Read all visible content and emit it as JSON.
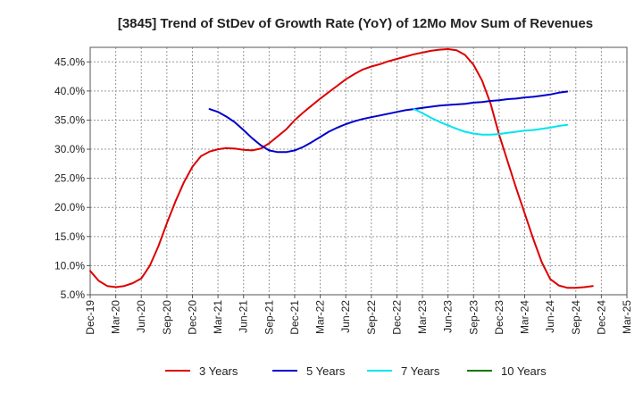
{
  "chart_data": {
    "type": "line",
    "title": "[3845]  Trend of StDev of Growth Rate (YoY) of 12Mo Mov Sum of Revenues",
    "xlabel": "",
    "ylabel": "",
    "ylim": [
      5.0,
      47.5
    ],
    "y_ticks": [
      5.0,
      10.0,
      15.0,
      20.0,
      25.0,
      30.0,
      35.0,
      40.0,
      45.0
    ],
    "y_tick_labels": [
      "5.0%",
      "10.0%",
      "15.0%",
      "20.0%",
      "25.0%",
      "30.0%",
      "35.0%",
      "40.0%",
      "45.0%"
    ],
    "x_ticks": [
      "Dec-19",
      "Mar-20",
      "Jun-20",
      "Sep-20",
      "Dec-20",
      "Mar-21",
      "Jun-21",
      "Sep-21",
      "Dec-21",
      "Mar-22",
      "Jun-22",
      "Sep-22",
      "Dec-22",
      "Mar-23",
      "Jun-23",
      "Sep-23",
      "Dec-23",
      "Mar-24",
      "Jun-24",
      "Sep-24",
      "Dec-24",
      "Mar-25"
    ],
    "grid": true,
    "legend_position": "bottom",
    "series": [
      {
        "name": "3 Years",
        "color": "#dd0000",
        "start_index": 0,
        "values": [
          9.1,
          7.4,
          6.5,
          6.3,
          6.5,
          7.0,
          7.8,
          10.0,
          13.3,
          17.3,
          21.0,
          24.3,
          27.0,
          28.8,
          29.6,
          30.0,
          30.2,
          30.1,
          29.9,
          29.8,
          30.1,
          31.0,
          32.2,
          33.4,
          35.0,
          36.3,
          37.5,
          38.7,
          39.8,
          40.9,
          42.0,
          42.9,
          43.7,
          44.2,
          44.6,
          45.1,
          45.5,
          45.9,
          46.3,
          46.6,
          46.9,
          47.1,
          47.2,
          47.0,
          46.2,
          44.5,
          41.8,
          37.8,
          32.5,
          27.9,
          23.3,
          19.0,
          14.6,
          10.6,
          7.7,
          6.6,
          6.2,
          6.2,
          6.3,
          6.5
        ]
      },
      {
        "name": "5 Years",
        "color": "#0000cc",
        "start_index": 14,
        "values": [
          36.9,
          36.4,
          35.6,
          34.6,
          33.3,
          31.9,
          30.7,
          29.8,
          29.5,
          29.5,
          29.8,
          30.4,
          31.2,
          32.1,
          33.0,
          33.7,
          34.3,
          34.8,
          35.2,
          35.5,
          35.8,
          36.1,
          36.4,
          36.7,
          36.9,
          37.1,
          37.3,
          37.5,
          37.6,
          37.7,
          37.8,
          38.0,
          38.1,
          38.3,
          38.4,
          38.6,
          38.7,
          38.9,
          39.0,
          39.2,
          39.4,
          39.7,
          39.9
        ]
      },
      {
        "name": "7 Years",
        "color": "#00e5ee",
        "start_index": 38,
        "values": [
          36.9,
          36.2,
          35.4,
          34.7,
          34.1,
          33.5,
          33.0,
          32.7,
          32.5,
          32.5,
          32.6,
          32.8,
          33.0,
          33.2,
          33.3,
          33.5,
          33.7,
          34.0,
          34.2
        ]
      },
      {
        "name": "10 Years",
        "color": "#007700",
        "start_index": 0,
        "values": []
      }
    ]
  }
}
